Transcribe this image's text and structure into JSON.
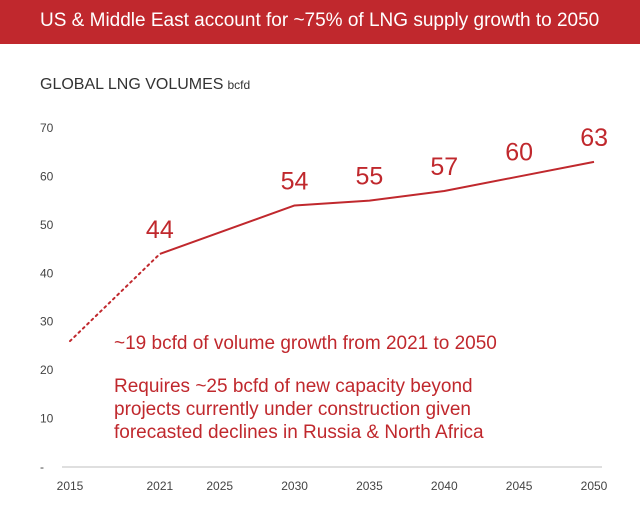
{
  "banner": {
    "title": "US & Middle East account for ~75% of LNG supply growth to 2050"
  },
  "header": {
    "title": "GLOBAL LNG VOLUMES",
    "unit": "bcfd"
  },
  "annotations": {
    "growth": "~19 bcfd of volume growth from 2021 to 2050",
    "capacity": [
      "Requires ~25 bcfd of new capacity beyond",
      "projects currently under construction given",
      "forecasted declines in Russia & North Africa"
    ]
  },
  "colors": {
    "accent": "#c0282d",
    "axis": "#444444"
  },
  "chart_data": {
    "type": "line",
    "title": "GLOBAL LNG VOLUMES",
    "ylabel": "bcfd",
    "x": [
      2015,
      2021,
      2030,
      2035,
      2040,
      2045,
      2050
    ],
    "x_ticks": [
      "2015",
      "2021",
      "2025",
      "2030",
      "2035",
      "2040",
      "2045",
      "2050"
    ],
    "y_ticks": [
      "-",
      "10",
      "20",
      "30",
      "40",
      "50",
      "60",
      "70"
    ],
    "ylim": [
      0,
      70
    ],
    "series": [
      {
        "values": [
          26,
          44,
          54,
          55,
          57,
          60,
          63
        ],
        "dotted_segment": [
          "2015",
          "2021"
        ]
      }
    ],
    "data_labels": [
      {
        "x": 2021,
        "label": "44"
      },
      {
        "x": 2030,
        "label": "54"
      },
      {
        "x": 2035,
        "label": "55"
      },
      {
        "x": 2040,
        "label": "57"
      },
      {
        "x": 2045,
        "label": "60"
      },
      {
        "x": 2050,
        "label": "63"
      }
    ],
    "grid": false,
    "legend": "none"
  }
}
